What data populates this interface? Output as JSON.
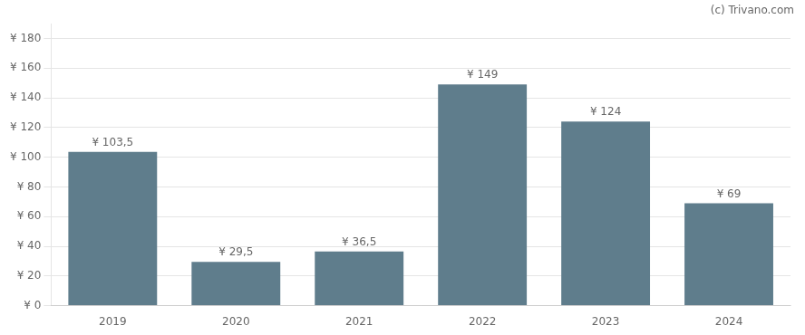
{
  "chart_data": {
    "type": "bar",
    "categories": [
      "2019",
      "2020",
      "2021",
      "2022",
      "2023",
      "2024"
    ],
    "values": [
      103.5,
      29.5,
      36.5,
      149,
      124,
      69
    ],
    "value_labels": [
      "¥ 103,5",
      "¥ 29,5",
      "¥ 36,5",
      "¥ 149",
      "¥ 124",
      "¥ 69"
    ],
    "data_labels": true,
    "color": "#5f7d8c",
    "ylim": [
      0,
      190
    ],
    "yticks": [
      {
        "value": 0,
        "label": "¥ 0"
      },
      {
        "value": 20,
        "label": "¥ 20"
      },
      {
        "value": 40,
        "label": "¥ 40"
      },
      {
        "value": 60,
        "label": "¥ 60"
      },
      {
        "value": 80,
        "label": "¥ 80"
      },
      {
        "value": 100,
        "label": "¥ 100"
      },
      {
        "value": 120,
        "label": "¥ 120"
      },
      {
        "value": 140,
        "label": "¥ 140"
      },
      {
        "value": 160,
        "label": "¥ 160"
      },
      {
        "value": 180,
        "label": "¥ 180"
      }
    ],
    "grid": true,
    "annotations": [
      "(c) Trivano.com"
    ]
  }
}
